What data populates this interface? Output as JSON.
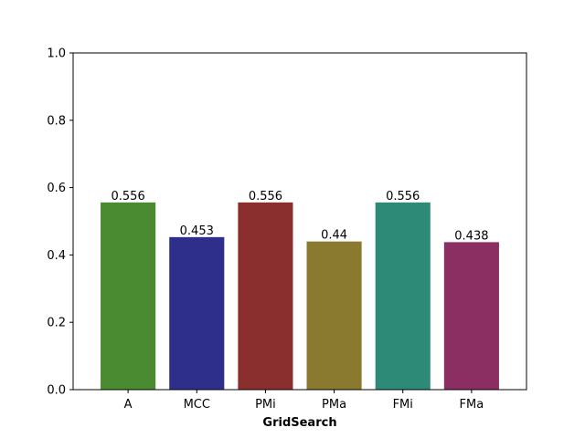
{
  "chart_data": {
    "type": "bar",
    "title": "",
    "xlabel": "GridSearch",
    "ylabel": "",
    "categories": [
      "A",
      "MCC",
      "PMi",
      "PMa",
      "FMi",
      "FMa"
    ],
    "values": [
      0.556,
      0.453,
      0.556,
      0.44,
      0.556,
      0.438
    ],
    "value_labels": [
      "0.556",
      "0.453",
      "0.556",
      "0.44",
      "0.556",
      "0.438"
    ],
    "colors": [
      "#4a8a30",
      "#2e2f8a",
      "#8b2f2e",
      "#8a7a30",
      "#2d8a76",
      "#8b2f62"
    ],
    "ylim": [
      0,
      1.0
    ],
    "yticks": [
      "0.0",
      "0.2",
      "0.4",
      "0.6",
      "0.8",
      "1.0"
    ],
    "grid": false,
    "legend": "none"
  }
}
